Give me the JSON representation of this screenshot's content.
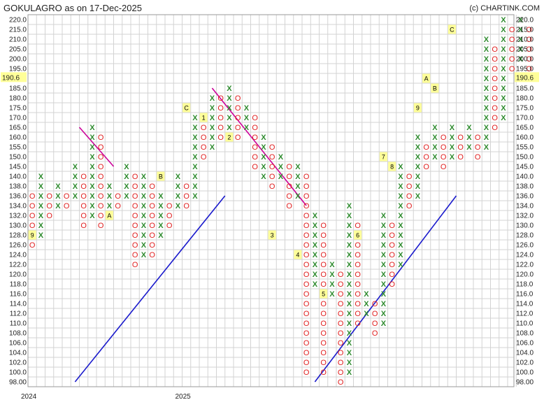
{
  "header": {
    "title": "GOKULAGRO as on 17-Dec-2025",
    "credit": "(c) CHARTINK.COM"
  },
  "chart_data": {
    "type": "point-and-figure",
    "symbol": "GOKULAGRO",
    "as_on": "17-Dec-2025",
    "box_levels": [
      220,
      215,
      210,
      205,
      200,
      195,
      190,
      185,
      180,
      175,
      170,
      165,
      160,
      155,
      150,
      145,
      140,
      138,
      136,
      134,
      132,
      130,
      128,
      126,
      124,
      122,
      120,
      118,
      116,
      114,
      112,
      110,
      108,
      106,
      104,
      102,
      100,
      98
    ],
    "y_tick_labels": [
      "220.0",
      "215.0",
      "210.0",
      "205.0",
      "200.0",
      "195.0",
      "190.0",
      "185.0",
      "180.0",
      "175.0",
      "170.0",
      "165.0",
      "160.0",
      "155.0",
      "150.0",
      "145.0",
      "140.0",
      "138.0",
      "136.0",
      "134.0",
      "132.0",
      "130.0",
      "128.0",
      "126.0",
      "124.0",
      "122.0",
      "120.0",
      "118.0",
      "116.0",
      "114.0",
      "112.0",
      "110.0",
      "108.0",
      "106.0",
      "104.0",
      "102.0",
      "100.0",
      "98.00"
    ],
    "last_price": "190.6",
    "x_labels": [
      {
        "text": "2024",
        "col": 0
      },
      {
        "text": "2025",
        "col": 18
      }
    ],
    "columns": [
      {
        "type": "O",
        "high": 136,
        "low": 126
      },
      {
        "type": "X",
        "high": 140,
        "low": 128
      },
      {
        "type": "O",
        "high": 136,
        "low": 132
      },
      {
        "type": "X",
        "high": 138,
        "low": 134
      },
      {
        "type": "O",
        "high": 136,
        "low": 134
      },
      {
        "type": "X",
        "high": 145,
        "low": 136
      },
      {
        "type": "O",
        "high": 140,
        "low": 130
      },
      {
        "type": "X",
        "high": 165,
        "low": 132
      },
      {
        "type": "O",
        "high": 160,
        "low": 130
      },
      {
        "type": "X",
        "high": 138,
        "low": 132
      },
      {
        "type": "O",
        "high": 136,
        "low": 134
      },
      {
        "type": "X",
        "high": 145,
        "low": 136
      },
      {
        "type": "O",
        "high": 140,
        "low": 122
      },
      {
        "type": "X",
        "high": 140,
        "low": 124
      },
      {
        "type": "O",
        "high": 138,
        "low": 124
      },
      {
        "type": "X",
        "high": 136,
        "low": 128
      },
      {
        "type": "O",
        "high": 134,
        "low": 130
      },
      {
        "type": "X",
        "high": 140,
        "low": 134
      },
      {
        "type": "O",
        "high": 138,
        "low": 134
      },
      {
        "type": "X",
        "high": 170,
        "low": 136
      },
      {
        "type": "O",
        "high": 165,
        "low": 150
      },
      {
        "type": "X",
        "high": 180,
        "low": 155
      },
      {
        "type": "O",
        "high": 180,
        "low": 160
      },
      {
        "type": "X",
        "high": 185,
        "low": 165
      },
      {
        "type": "O",
        "high": 180,
        "low": 160
      },
      {
        "type": "X",
        "high": 175,
        "low": 165
      },
      {
        "type": "O",
        "high": 170,
        "low": 145
      },
      {
        "type": "X",
        "high": 160,
        "low": 140
      },
      {
        "type": "O",
        "high": 155,
        "low": 138
      },
      {
        "type": "X",
        "high": 150,
        "low": 140
      },
      {
        "type": "O",
        "high": 145,
        "low": 134
      },
      {
        "type": "X",
        "high": 145,
        "low": 136
      },
      {
        "type": "O",
        "high": 140,
        "low": 100
      },
      {
        "type": "X",
        "high": 132,
        "low": 118
      },
      {
        "type": "O",
        "high": 130,
        "low": 100
      },
      {
        "type": "X",
        "high": 122,
        "low": 116
      },
      {
        "type": "O",
        "high": 120,
        "low": 98
      },
      {
        "type": "X",
        "high": 134,
        "low": 100
      },
      {
        "type": "O",
        "high": 130,
        "low": 110
      },
      {
        "type": "X",
        "high": 116,
        "low": 112
      },
      {
        "type": "O",
        "high": 114,
        "low": 108
      },
      {
        "type": "X",
        "high": 132,
        "low": 110
      },
      {
        "type": "O",
        "high": 130,
        "low": 118
      },
      {
        "type": "X",
        "high": 145,
        "low": 122
      },
      {
        "type": "O",
        "high": 140,
        "low": 134
      },
      {
        "type": "X",
        "high": 160,
        "low": 136
      },
      {
        "type": "O",
        "high": 155,
        "low": 145
      },
      {
        "type": "X",
        "high": 165,
        "low": 150
      },
      {
        "type": "O",
        "high": 160,
        "low": 145
      },
      {
        "type": "X",
        "high": 165,
        "low": 150
      },
      {
        "type": "O",
        "high": 160,
        "low": 150
      },
      {
        "type": "X",
        "high": 165,
        "low": 155
      },
      {
        "type": "O",
        "high": 160,
        "low": 150
      },
      {
        "type": "X",
        "high": 210,
        "low": 155
      },
      {
        "type": "O",
        "high": 205,
        "low": 165
      },
      {
        "type": "X",
        "high": 220,
        "low": 170
      },
      {
        "type": "O",
        "high": 215,
        "low": 195
      },
      {
        "type": "X",
        "high": 220,
        "low": 200
      },
      {
        "type": "O",
        "high": 215,
        "low": 190
      }
    ],
    "markers": [
      {
        "text": "9",
        "col": 0,
        "level": 128
      },
      {
        "text": "A",
        "col": 9,
        "level": 132
      },
      {
        "text": "B",
        "col": 15,
        "level": 140
      },
      {
        "text": "C",
        "col": 18,
        "level": 175
      },
      {
        "text": "1",
        "col": 20,
        "level": 170
      },
      {
        "text": "2",
        "col": 23,
        "level": 160
      },
      {
        "text": "3",
        "col": 28,
        "level": 128
      },
      {
        "text": "4",
        "col": 31,
        "level": 124
      },
      {
        "text": "5",
        "col": 34,
        "level": 116
      },
      {
        "text": "6",
        "col": 38,
        "level": 128
      },
      {
        "text": "7",
        "col": 41,
        "level": 150
      },
      {
        "text": "8",
        "col": 42,
        "level": 145
      },
      {
        "text": "9",
        "col": 45,
        "level": 175
      },
      {
        "text": "A",
        "col": 46,
        "level": 190
      },
      {
        "text": "B",
        "col": 47,
        "level": 185
      },
      {
        "text": "C",
        "col": 49,
        "level": 215
      }
    ],
    "trendlines": [
      {
        "type": "resistance",
        "color": "#cc0099",
        "from": {
          "col": 5.5,
          "level": 165
        },
        "to": {
          "col": 9.5,
          "level": 145
        }
      },
      {
        "type": "resistance",
        "color": "#cc0099",
        "from": {
          "col": 21,
          "level": 185
        },
        "to": {
          "col": 32,
          "level": 134
        }
      },
      {
        "type": "support",
        "color": "#1a1acc",
        "from": {
          "col": 5,
          "level": 98
        },
        "to": {
          "col": 22.5,
          "level": 136
        }
      },
      {
        "type": "support",
        "color": "#1a1acc",
        "from": {
          "col": 33,
          "level": 98
        },
        "to": {
          "col": 49.5,
          "level": 136
        }
      }
    ],
    "colors": {
      "x": "#2e8b2e",
      "o": "#e02020",
      "grid": "#d3d3d3",
      "last_price_bg": "#ffff99"
    }
  }
}
